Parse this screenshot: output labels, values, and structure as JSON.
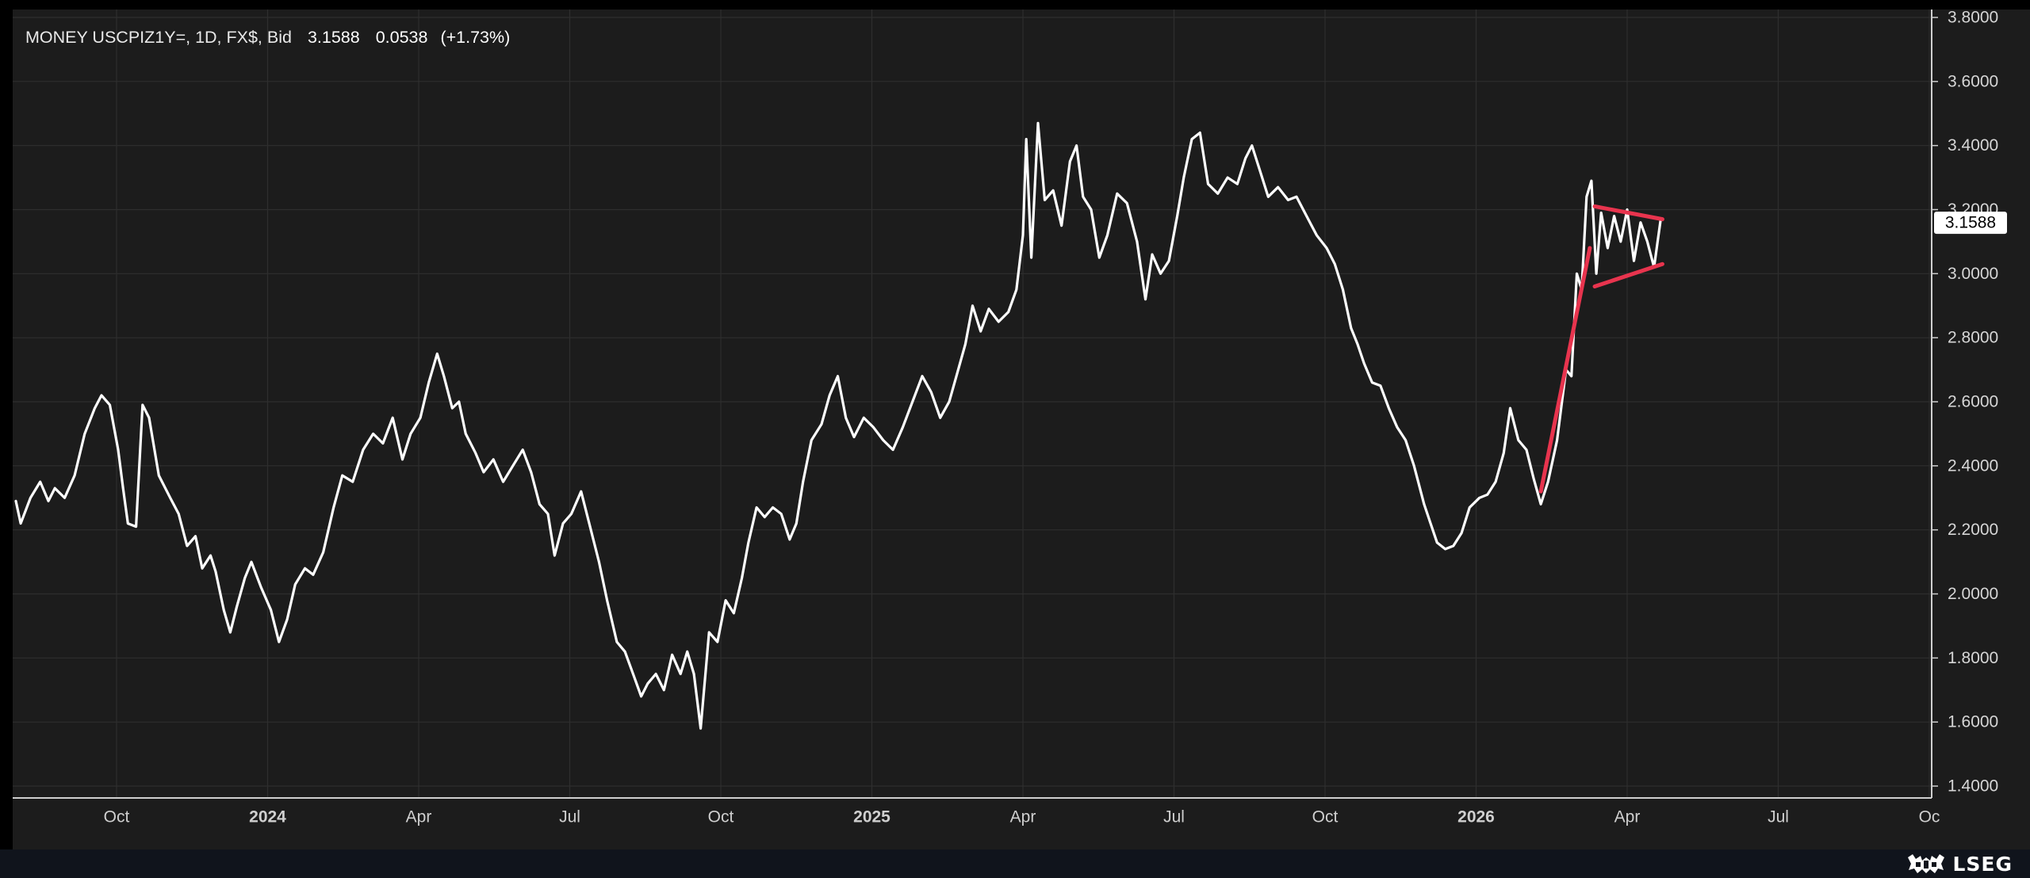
{
  "header": {
    "instrument": "MONEY USCPIZ1Y=, 1D, FX$, Bid",
    "last": "3.1588",
    "change": "0.0538",
    "change_pct": "(+1.73%)"
  },
  "price_tag": "3.1588",
  "footer": {
    "brand": "LSEG"
  },
  "colors": {
    "background": "#1c1c1c",
    "line": "#ffffff",
    "pattern": "#e8344e",
    "grid": "#2e2e2e"
  },
  "chart_data": {
    "type": "line",
    "x_axis": {
      "start": "2023-08-01",
      "end": "2026-10-01",
      "ticks": [
        {
          "date": "2023-10-01",
          "label": "Oct",
          "bold": false
        },
        {
          "date": "2024-01-01",
          "label": "2024",
          "bold": true
        },
        {
          "date": "2024-04-01",
          "label": "Apr",
          "bold": false
        },
        {
          "date": "2024-07-01",
          "label": "Jul",
          "bold": false
        },
        {
          "date": "2024-10-01",
          "label": "Oct",
          "bold": false
        },
        {
          "date": "2025-01-01",
          "label": "2025",
          "bold": true
        },
        {
          "date": "2025-04-01",
          "label": "Apr",
          "bold": false
        },
        {
          "date": "2025-07-01",
          "label": "Jul",
          "bold": false
        },
        {
          "date": "2025-10-01",
          "label": "Oct",
          "bold": false
        },
        {
          "date": "2026-01-01",
          "label": "2026",
          "bold": true
        },
        {
          "date": "2026-04-01",
          "label": "Apr",
          "bold": false
        },
        {
          "date": "2026-07-01",
          "label": "Jul",
          "bold": false
        },
        {
          "date": "2026-10-01",
          "label": "Oc",
          "bold": false
        }
      ]
    },
    "y_axis": {
      "min": 1.4,
      "max": 3.8,
      "ticks": [
        "1.4000",
        "1.6000",
        "1.8000",
        "2.0000",
        "2.2000",
        "2.4000",
        "2.6000",
        "2.8000",
        "3.0000",
        "3.2000",
        "3.4000",
        "3.6000",
        "3.8000"
      ]
    },
    "grid": true,
    "series": [
      {
        "points": [
          [
            "2023-08-01",
            2.29
          ],
          [
            "2023-08-04",
            2.22
          ],
          [
            "2023-08-10",
            2.3
          ],
          [
            "2023-08-16",
            2.35
          ],
          [
            "2023-08-21",
            2.29
          ],
          [
            "2023-08-25",
            2.33
          ],
          [
            "2023-08-31",
            2.3
          ],
          [
            "2023-09-06",
            2.37
          ],
          [
            "2023-09-12",
            2.5
          ],
          [
            "2023-09-18",
            2.58
          ],
          [
            "2023-09-22",
            2.62
          ],
          [
            "2023-09-27",
            2.59
          ],
          [
            "2023-10-02",
            2.45
          ],
          [
            "2023-10-05",
            2.33
          ],
          [
            "2023-10-08",
            2.22
          ],
          [
            "2023-10-13",
            2.21
          ],
          [
            "2023-10-17",
            2.59
          ],
          [
            "2023-10-21",
            2.55
          ],
          [
            "2023-10-27",
            2.37
          ],
          [
            "2023-11-03",
            2.3
          ],
          [
            "2023-11-08",
            2.25
          ],
          [
            "2023-11-13",
            2.15
          ],
          [
            "2023-11-18",
            2.18
          ],
          [
            "2023-11-22",
            2.08
          ],
          [
            "2023-11-27",
            2.12
          ],
          [
            "2023-11-30",
            2.07
          ],
          [
            "2023-12-05",
            1.95
          ],
          [
            "2023-12-09",
            1.88
          ],
          [
            "2023-12-13",
            1.96
          ],
          [
            "2023-12-18",
            2.05
          ],
          [
            "2023-12-22",
            2.1
          ],
          [
            "2023-12-28",
            2.02
          ],
          [
            "2024-01-03",
            1.95
          ],
          [
            "2024-01-08",
            1.85
          ],
          [
            "2024-01-13",
            1.92
          ],
          [
            "2024-01-18",
            2.03
          ],
          [
            "2024-01-24",
            2.08
          ],
          [
            "2024-01-29",
            2.06
          ],
          [
            "2024-02-04",
            2.13
          ],
          [
            "2024-02-10",
            2.27
          ],
          [
            "2024-02-15",
            2.37
          ],
          [
            "2024-02-21",
            2.35
          ],
          [
            "2024-02-27",
            2.45
          ],
          [
            "2024-03-04",
            2.5
          ],
          [
            "2024-03-10",
            2.47
          ],
          [
            "2024-03-16",
            2.55
          ],
          [
            "2024-03-22",
            2.42
          ],
          [
            "2024-03-27",
            2.5
          ],
          [
            "2024-04-02",
            2.55
          ],
          [
            "2024-04-07",
            2.66
          ],
          [
            "2024-04-12",
            2.75
          ],
          [
            "2024-04-16",
            2.68
          ],
          [
            "2024-04-21",
            2.58
          ],
          [
            "2024-04-25",
            2.6
          ],
          [
            "2024-04-29",
            2.5
          ],
          [
            "2024-05-05",
            2.44
          ],
          [
            "2024-05-10",
            2.38
          ],
          [
            "2024-05-16",
            2.42
          ],
          [
            "2024-05-22",
            2.35
          ],
          [
            "2024-05-28",
            2.4
          ],
          [
            "2024-06-03",
            2.45
          ],
          [
            "2024-06-08",
            2.38
          ],
          [
            "2024-06-13",
            2.28
          ],
          [
            "2024-06-18",
            2.25
          ],
          [
            "2024-06-22",
            2.12
          ],
          [
            "2024-06-27",
            2.22
          ],
          [
            "2024-07-02",
            2.25
          ],
          [
            "2024-07-08",
            2.32
          ],
          [
            "2024-07-13",
            2.22
          ],
          [
            "2024-07-19",
            2.1
          ],
          [
            "2024-07-24",
            1.98
          ],
          [
            "2024-07-30",
            1.85
          ],
          [
            "2024-08-04",
            1.82
          ],
          [
            "2024-08-09",
            1.75
          ],
          [
            "2024-08-14",
            1.68
          ],
          [
            "2024-08-18",
            1.72
          ],
          [
            "2024-08-23",
            1.75
          ],
          [
            "2024-08-28",
            1.7
          ],
          [
            "2024-09-02",
            1.81
          ],
          [
            "2024-09-07",
            1.75
          ],
          [
            "2024-09-11",
            1.82
          ],
          [
            "2024-09-15",
            1.75
          ],
          [
            "2024-09-19",
            1.58
          ],
          [
            "2024-09-24",
            1.88
          ],
          [
            "2024-09-29",
            1.85
          ],
          [
            "2024-10-04",
            1.98
          ],
          [
            "2024-10-09",
            1.94
          ],
          [
            "2024-10-14",
            2.05
          ],
          [
            "2024-10-18",
            2.16
          ],
          [
            "2024-10-23",
            2.27
          ],
          [
            "2024-10-28",
            2.24
          ],
          [
            "2024-11-02",
            2.27
          ],
          [
            "2024-11-07",
            2.25
          ],
          [
            "2024-11-12",
            2.17
          ],
          [
            "2024-11-16",
            2.22
          ],
          [
            "2024-11-20",
            2.35
          ],
          [
            "2024-11-25",
            2.48
          ],
          [
            "2024-12-01",
            2.53
          ],
          [
            "2024-12-06",
            2.62
          ],
          [
            "2024-12-11",
            2.68
          ],
          [
            "2024-12-16",
            2.55
          ],
          [
            "2024-12-21",
            2.49
          ],
          [
            "2024-12-27",
            2.55
          ],
          [
            "2025-01-02",
            2.52
          ],
          [
            "2025-01-08",
            2.48
          ],
          [
            "2025-01-14",
            2.45
          ],
          [
            "2025-01-20",
            2.52
          ],
          [
            "2025-01-26",
            2.6
          ],
          [
            "2025-02-01",
            2.68
          ],
          [
            "2025-02-06",
            2.63
          ],
          [
            "2025-02-11",
            2.55
          ],
          [
            "2025-02-16",
            2.6
          ],
          [
            "2025-02-20",
            2.68
          ],
          [
            "2025-02-25",
            2.78
          ],
          [
            "2025-03-01",
            2.9
          ],
          [
            "2025-03-06",
            2.82
          ],
          [
            "2025-03-11",
            2.89
          ],
          [
            "2025-03-17",
            2.85
          ],
          [
            "2025-03-23",
            2.88
          ],
          [
            "2025-03-28",
            2.95
          ],
          [
            "2025-04-01",
            3.12
          ],
          [
            "2025-04-03",
            3.42
          ],
          [
            "2025-04-06",
            3.05
          ],
          [
            "2025-04-10",
            3.47
          ],
          [
            "2025-04-14",
            3.23
          ],
          [
            "2025-04-19",
            3.26
          ],
          [
            "2025-04-24",
            3.15
          ],
          [
            "2025-04-29",
            3.35
          ],
          [
            "2025-05-03",
            3.4
          ],
          [
            "2025-05-07",
            3.24
          ],
          [
            "2025-05-12",
            3.2
          ],
          [
            "2025-05-17",
            3.05
          ],
          [
            "2025-05-22",
            3.12
          ],
          [
            "2025-05-28",
            3.25
          ],
          [
            "2025-06-03",
            3.22
          ],
          [
            "2025-06-09",
            3.1
          ],
          [
            "2025-06-14",
            2.92
          ],
          [
            "2025-06-18",
            3.06
          ],
          [
            "2025-06-23",
            3.0
          ],
          [
            "2025-06-28",
            3.04
          ],
          [
            "2025-07-03",
            3.18
          ],
          [
            "2025-07-07",
            3.3
          ],
          [
            "2025-07-12",
            3.42
          ],
          [
            "2025-07-17",
            3.44
          ],
          [
            "2025-07-22",
            3.28
          ],
          [
            "2025-07-28",
            3.25
          ],
          [
            "2025-08-03",
            3.3
          ],
          [
            "2025-08-09",
            3.28
          ],
          [
            "2025-08-14",
            3.36
          ],
          [
            "2025-08-18",
            3.4
          ],
          [
            "2025-08-23",
            3.32
          ],
          [
            "2025-08-28",
            3.24
          ],
          [
            "2025-09-03",
            3.27
          ],
          [
            "2025-09-09",
            3.23
          ],
          [
            "2025-09-14",
            3.24
          ],
          [
            "2025-09-20",
            3.18
          ],
          [
            "2025-09-26",
            3.12
          ],
          [
            "2025-10-02",
            3.08
          ],
          [
            "2025-10-07",
            3.03
          ],
          [
            "2025-10-12",
            2.95
          ],
          [
            "2025-10-17",
            2.83
          ],
          [
            "2025-10-21",
            2.78
          ],
          [
            "2025-10-25",
            2.72
          ],
          [
            "2025-10-30",
            2.66
          ],
          [
            "2025-11-04",
            2.65
          ],
          [
            "2025-11-09",
            2.58
          ],
          [
            "2025-11-14",
            2.52
          ],
          [
            "2025-11-19",
            2.48
          ],
          [
            "2025-11-24",
            2.4
          ],
          [
            "2025-11-30",
            2.28
          ],
          [
            "2025-12-04",
            2.22
          ],
          [
            "2025-12-08",
            2.16
          ],
          [
            "2025-12-13",
            2.14
          ],
          [
            "2025-12-18",
            2.15
          ],
          [
            "2025-12-23",
            2.19
          ],
          [
            "2025-12-28",
            2.27
          ],
          [
            "2026-01-03",
            2.3
          ],
          [
            "2026-01-08",
            2.31
          ],
          [
            "2026-01-13",
            2.35
          ],
          [
            "2026-01-18",
            2.44
          ],
          [
            "2026-01-22",
            2.58
          ],
          [
            "2026-01-27",
            2.48
          ],
          [
            "2026-02-01",
            2.45
          ],
          [
            "2026-02-05",
            2.36
          ],
          [
            "2026-02-09",
            2.28
          ],
          [
            "2026-02-13",
            2.35
          ],
          [
            "2026-02-18",
            2.48
          ],
          [
            "2026-02-23",
            2.7
          ],
          [
            "2026-02-26",
            2.68
          ],
          [
            "2026-03-01",
            3.0
          ],
          [
            "2026-03-04",
            2.95
          ],
          [
            "2026-03-07",
            3.24
          ],
          [
            "2026-03-10",
            3.29
          ],
          [
            "2026-03-13",
            3.0
          ],
          [
            "2026-03-16",
            3.19
          ],
          [
            "2026-03-20",
            3.08
          ],
          [
            "2026-03-24",
            3.18
          ],
          [
            "2026-03-28",
            3.1
          ],
          [
            "2026-04-01",
            3.2
          ],
          [
            "2026-04-05",
            3.04
          ],
          [
            "2026-04-09",
            3.16
          ],
          [
            "2026-04-13",
            3.1
          ],
          [
            "2026-04-17",
            3.02
          ],
          [
            "2026-04-21",
            3.17
          ]
        ]
      }
    ],
    "annotations": [
      {
        "type": "trendline",
        "from": [
          "2026-02-09",
          2.32
        ],
        "to": [
          "2026-03-09",
          3.08
        ]
      },
      {
        "type": "trendline",
        "from": [
          "2026-03-12",
          3.21
        ],
        "to": [
          "2026-04-22",
          3.17
        ]
      },
      {
        "type": "trendline",
        "from": [
          "2026-03-12",
          2.96
        ],
        "to": [
          "2026-04-22",
          3.03
        ]
      }
    ],
    "last_value": 3.1588
  }
}
